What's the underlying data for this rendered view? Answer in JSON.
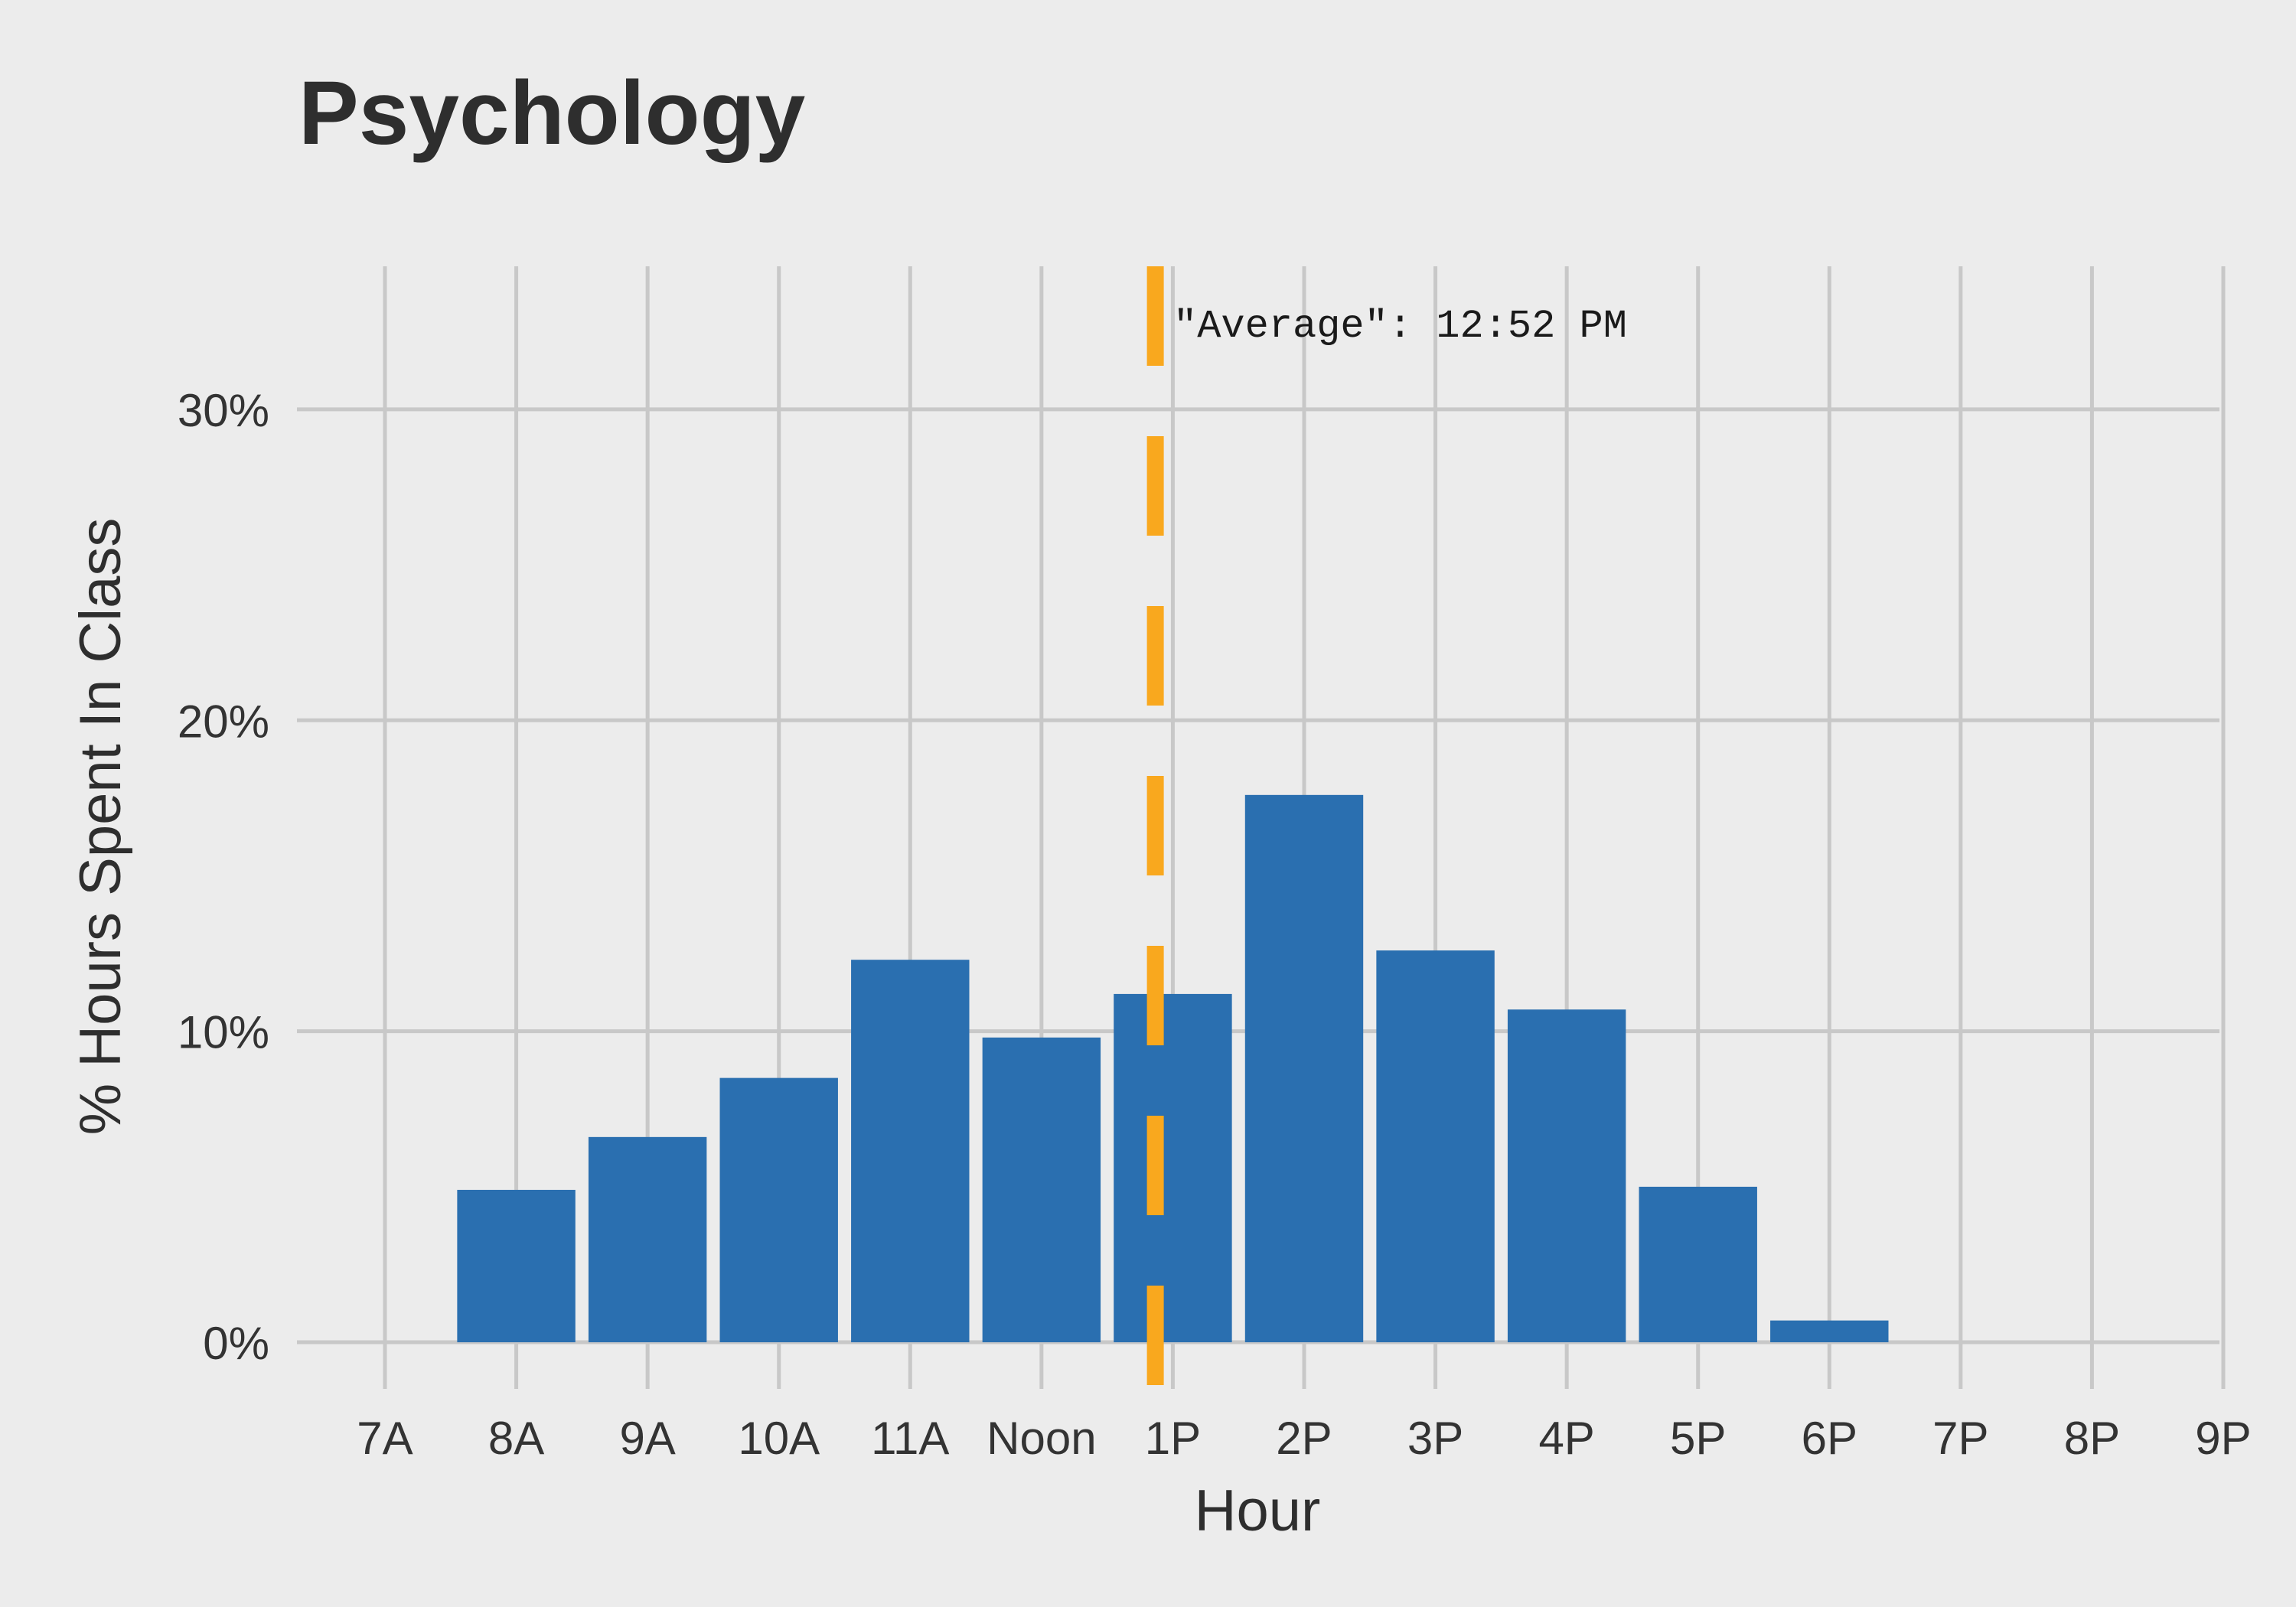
{
  "chart_data": {
    "type": "bar",
    "title": "Psychology",
    "xlabel": "Hour",
    "ylabel": "% Hours Spent In Class",
    "categories": [
      "7A",
      "8A",
      "9A",
      "10A",
      "11A",
      "Noon",
      "1P",
      "2P",
      "3P",
      "4P",
      "5P",
      "6P",
      "7P",
      "8P",
      "9P"
    ],
    "values": [
      0,
      4.9,
      6.6,
      8.5,
      12.3,
      9.8,
      11.2,
      17.6,
      12.6,
      10.7,
      5.0,
      0.7,
      0,
      0,
      0
    ],
    "ylim": [
      -1.5,
      34.6
    ],
    "yticks": [
      0,
      10,
      20,
      30
    ],
    "ytick_labels": [
      "0%",
      "10%",
      "20%",
      "30%"
    ],
    "grid": true,
    "average_line": {
      "x_hour": 12.867,
      "label": "\"Average\": 12:52 PM"
    },
    "colors": {
      "bar": "#2a6fb0",
      "average_line": "#f9a81e",
      "background": "#ececec",
      "grid": "#c8c8c8"
    }
  }
}
